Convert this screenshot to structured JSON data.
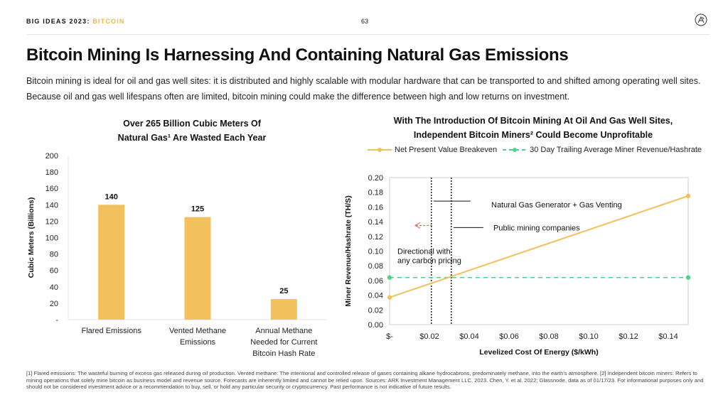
{
  "header": {
    "prefix": "BIG IDEAS 2023: ",
    "accent": "BITCOIN",
    "page_number": "63"
  },
  "title": "Bitcoin Mining Is Harnessing And Containing Natural Gas Emissions",
  "intro": "Bitcoin mining is ideal for oil and gas well sites: it is distributed and highly scalable with modular hardware that can be transported to and shifted among operating well sites. Because oil and gas well lifespans often are limited, bitcoin mining could make the difference between high and low returns on investment.",
  "left_title_line1": "Over 265 Billion Cubic Meters Of",
  "left_title_line2": "Natural Gas¹ Are Wasted Each Year",
  "right_title_line1": "With The Introduction Of Bitcoin Mining At Oil And Gas Well Sites,",
  "right_title_line2": "Independent Bitcoin Miners² Could Become Unprofitable",
  "footnote": "[1] Flared emissions: The wasteful burning of excess gas released during oil production. Vented methane: The intentional and controlled release of gases containing alkane hydrocabrons, predominately methane, into the earth's atmosphere. [2] Independent bitcoin miners: Refers to mining operations that solely mine bitcoin as business model and revenue source. Forecasts are inherently limited and cannot be relied upon. Sources: ARK Investment Management LLC, 2023. Chen, Y. et al. 2022; Glassnode, data as of 01/17/23. For informational purposes only and should not be considered investment advice or a recommendation to buy, sell, or hold any particular security or cryptocurrency. Past performance is not indicative of future results.",
  "colors": {
    "accent": "#f0b63c",
    "bar": "#f2c05c",
    "green": "#4fd08c"
  },
  "chart_data": [
    {
      "type": "bar",
      "title": "Over 265 Billion Cubic Meters Of Natural Gas¹ Are Wasted Each Year",
      "ylabel": "Cubic Meters (Billions)",
      "ylim": [
        0,
        200
      ],
      "yticks": [
        "-",
        "20",
        "40",
        "60",
        "80",
        "100",
        "120",
        "140",
        "160",
        "180",
        "200"
      ],
      "categories": [
        [
          "Flared Emissions"
        ],
        [
          "Vented Methane",
          "Emissions"
        ],
        [
          "Annual Methane",
          "Needed for Current",
          "Bitcoin Hash Rate"
        ]
      ],
      "values": [
        140,
        125,
        25
      ],
      "data_labels": [
        "140",
        "125",
        "25"
      ]
    },
    {
      "type": "line",
      "title": "With The Introduction Of Bitcoin Mining At Oil And Gas Well Sites, Independent Bitcoin Miners² Could Become Unprofitable",
      "xlabel": "Levelized Cost Of Energy ($/kWh)",
      "ylabel": "Miner Revenue/Hashrate (TH/S)",
      "xlim": [
        0,
        0.15
      ],
      "ylim": [
        0,
        0.2
      ],
      "xticks": [
        "$-",
        "$0.02",
        "$0.04",
        "$0.06",
        "$0.08",
        "$0.10",
        "$0.12",
        "$0.14"
      ],
      "yticks": [
        "0.00",
        "0.02",
        "0.04",
        "0.06",
        "0.08",
        "0.10",
        "0.12",
        "0.14",
        "0.16",
        "0.18",
        "0.20"
      ],
      "series": [
        {
          "name": "Net Present Value Breakeven",
          "x": [
            0,
            0.15
          ],
          "values": [
            0.037,
            0.175
          ],
          "style": "solid"
        },
        {
          "name": "30 Day Trailing Average Miner Revenue/Hashrate",
          "x": [
            0,
            0.15
          ],
          "values": [
            0.064,
            0.064
          ],
          "style": "dashed"
        }
      ],
      "vlines": [
        0.021,
        0.031
      ],
      "annotations": {
        "gas": "Natural Gas Generator + Gas Venting",
        "public": "Public mining companies",
        "directional_line1": "Directional with",
        "directional_line2": "any carbon pricing"
      },
      "legend": "top"
    }
  ]
}
